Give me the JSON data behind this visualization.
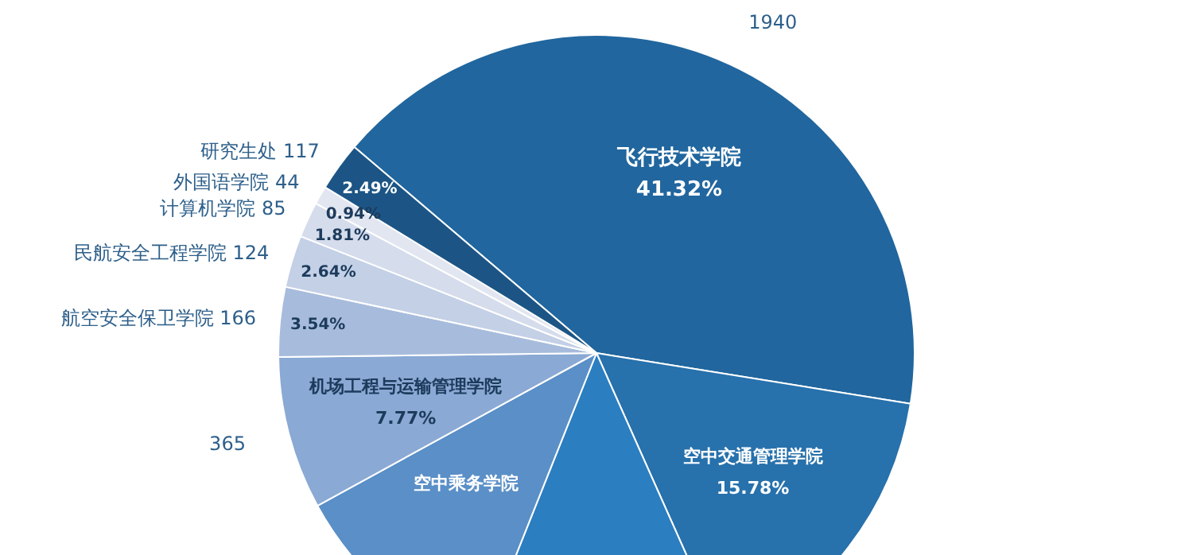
{
  "chart_data": {
    "type": "pie",
    "categories": [
      "飞行技术学院",
      "空中交通管理学院",
      null,
      "空中乘务学院",
      "机场工程与运输管理学院",
      "航空安全保卫学院",
      "民航安全工程学院",
      "计算机学院",
      "外国语学院",
      "研究生处"
    ],
    "values": [
      41.32,
      15.78,
      12.7,
      11.0,
      7.77,
      3.54,
      2.64,
      1.81,
      0.94,
      2.49
    ],
    "colors": [
      "#21669e",
      "#2771ac",
      "#2b7ec0",
      "#5a8fc7",
      "#8aa9d4",
      "#a7bcdc",
      "#c3d0e6",
      "#d5dcec",
      "#e2e6f1",
      "#1c5585"
    ],
    "value_labels": [
      "41.32%",
      "15.78%",
      null,
      null,
      "7.77%",
      "3.54%",
      "2.64%",
      "1.81%",
      "0.94%",
      "2.49%"
    ],
    "annotations": [
      {
        "text": "1940",
        "x": "飞行技术学院"
      },
      {
        "text": "365",
        "x": "机场工程与运输管理学院"
      },
      {
        "text": "166",
        "x": "航空安全保卫学院"
      },
      {
        "text": "124",
        "x": "民航安全工程学院"
      },
      {
        "text": "85",
        "x": "计算机学院"
      },
      {
        "text": "44",
        "x": "外国语学院"
      },
      {
        "text": "117",
        "x": "研究生处"
      }
    ]
  }
}
